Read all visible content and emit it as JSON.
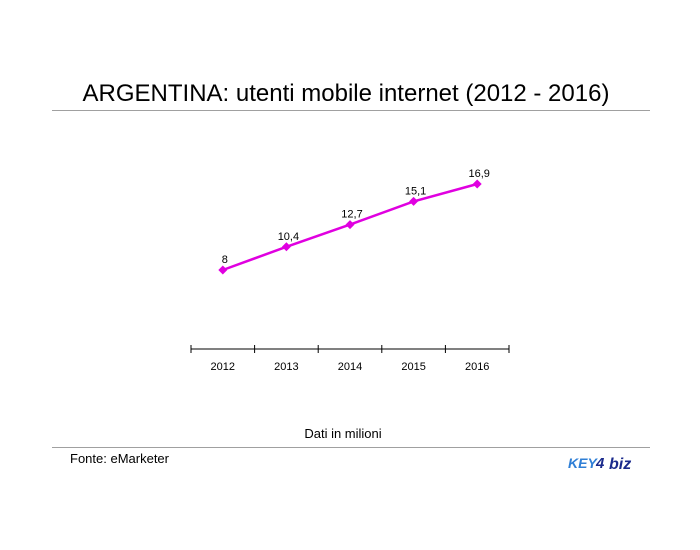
{
  "slide": {
    "title": "ARGENTINA: utenti mobile internet (2012 - 2016)",
    "unit_note": "Dati in milioni",
    "source": "Fonte: eMarketer",
    "logo": {
      "text_left": "KEY",
      "digit": "4",
      "text_right": "biz",
      "color_main": "#1a2a8c",
      "color_accent": "#2f7fd6"
    }
  },
  "chart_data": {
    "type": "line",
    "title": "",
    "xlabel": "",
    "ylabel": "",
    "categories": [
      "2012",
      "2013",
      "2014",
      "2015",
      "2016"
    ],
    "series": [
      {
        "values": [
          8,
          10.4,
          12.7,
          15.1,
          16.9
        ],
        "labels": [
          "8",
          "10,4",
          "12,7",
          "15,1",
          "16,9"
        ],
        "color": "#e000e0",
        "marker": "diamond"
      }
    ],
    "grid": false,
    "y_axis_visible": false
  }
}
